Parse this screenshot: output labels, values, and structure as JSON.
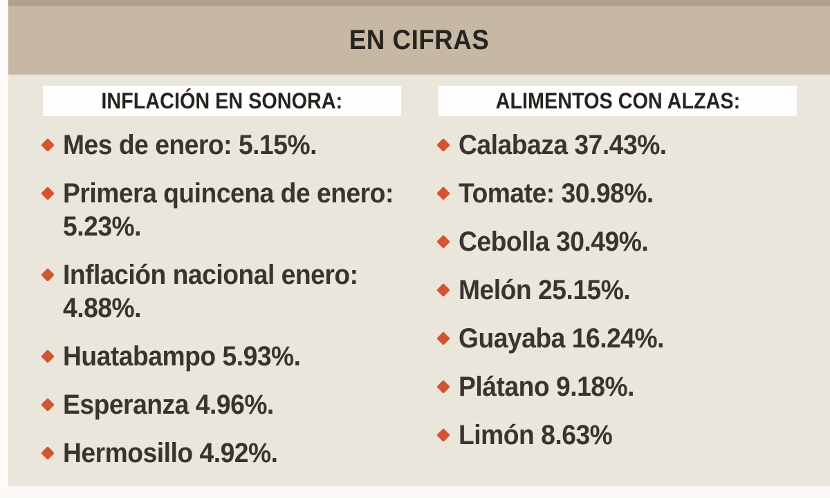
{
  "title": "EN CIFRAS",
  "left_panel": {
    "header": "INFLACIÓN EN SONORA:",
    "items": [
      {
        "lines": [
          "Mes de enero: 5.15%."
        ]
      },
      {
        "lines": [
          "Primera quincena de enero:",
          "5.23%."
        ]
      },
      {
        "lines": [
          "Inflación nacional enero:",
          "4.88%."
        ]
      },
      {
        "lines": [
          "Huatabampo 5.93%."
        ]
      },
      {
        "lines": [
          "Esperanza 4.96%."
        ]
      },
      {
        "lines": [
          "Hermosillo 4.92%."
        ]
      }
    ]
  },
  "right_panel": {
    "header": "ALIMENTOS CON ALZAS:",
    "items": [
      {
        "lines": [
          "Calabaza 37.43%."
        ]
      },
      {
        "lines": [
          "Tomate: 30.98%."
        ]
      },
      {
        "lines": [
          "Cebolla 30.49%."
        ]
      },
      {
        "lines": [
          "Melón 25.15%."
        ]
      },
      {
        "lines": [
          "Guayaba 16.24%."
        ]
      },
      {
        "lines": [
          "Plátano 9.18%."
        ]
      },
      {
        "lines": [
          "Limón 8.63%"
        ]
      }
    ]
  },
  "colors": {
    "title_band": "#c6b8a3",
    "top_strip": "#b1a28c",
    "content_background": "#eae6dc",
    "header_box_background": "#fefefe",
    "bullet": "#d35430",
    "heading_text": "#26241f",
    "item_text": "#38352e"
  }
}
